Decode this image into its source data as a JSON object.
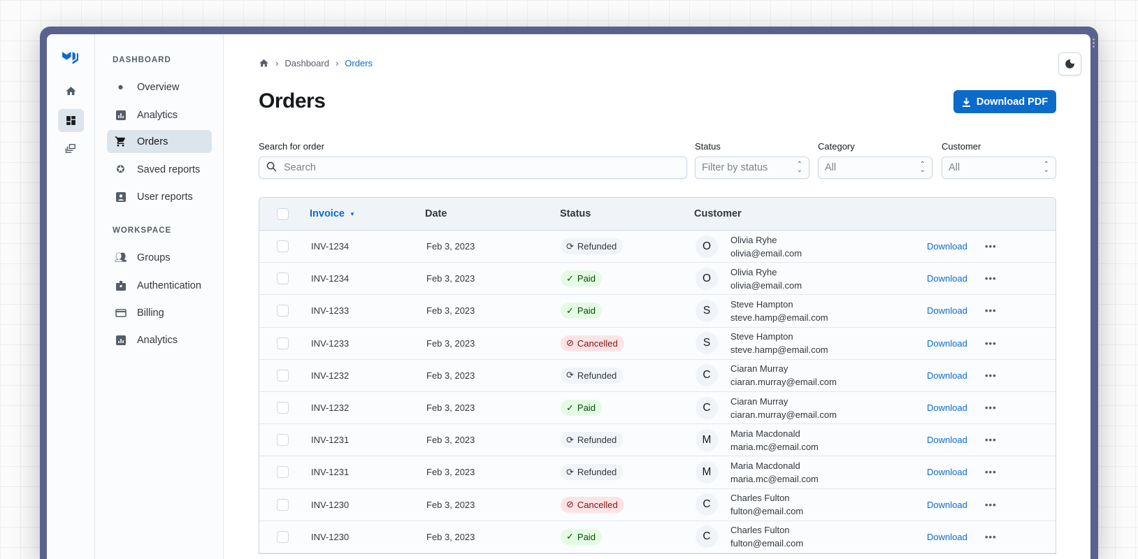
{
  "colors": {
    "accent": "#0b6bcb",
    "frame": "#59628f",
    "paid": "#e3fbe3",
    "cancelled": "#fce4e4",
    "refunded": "#f0f4f8"
  },
  "rail": {
    "logo": "MUI logo",
    "items": [
      {
        "icon": "home-icon"
      },
      {
        "icon": "dashboard-icon",
        "active": true
      },
      {
        "icon": "collections-icon"
      }
    ]
  },
  "nav": {
    "sections": [
      {
        "title": "DASHBOARD",
        "items": [
          {
            "label": "Overview",
            "icon": "bubble-chart-icon"
          },
          {
            "label": "Analytics",
            "icon": "bar-chart-icon"
          },
          {
            "label": "Orders",
            "icon": "cart-icon",
            "active": true
          },
          {
            "label": "Saved reports",
            "icon": "star-icon"
          },
          {
            "label": "User reports",
            "icon": "account-box-icon"
          }
        ]
      },
      {
        "title": "WORKSPACE",
        "items": [
          {
            "label": "Groups",
            "icon": "group-icon"
          },
          {
            "label": "Authentication",
            "icon": "badge-icon"
          },
          {
            "label": "Billing",
            "icon": "credit-card-icon"
          },
          {
            "label": "Analytics",
            "icon": "analytics-icon"
          }
        ]
      }
    ]
  },
  "breadcrumb": {
    "items": [
      "Dashboard",
      "Orders"
    ]
  },
  "header": {
    "title": "Orders",
    "download_pdf": "Download PDF"
  },
  "filters": {
    "search": {
      "label": "Search for order",
      "placeholder": "Search"
    },
    "status": {
      "label": "Status",
      "placeholder": "Filter by status"
    },
    "category": {
      "label": "Category",
      "value": "All"
    },
    "customer": {
      "label": "Customer",
      "value": "All"
    }
  },
  "table": {
    "columns": [
      "Invoice",
      "Date",
      "Status",
      "Customer"
    ],
    "sort": {
      "column": "Invoice",
      "direction": "desc"
    },
    "action_label": "Download",
    "rows": [
      {
        "invoice": "INV-1234",
        "date": "Feb 3, 2023",
        "status": "Refunded",
        "initial": "O",
        "name": "Olivia Ryhe",
        "email": "olivia@email.com"
      },
      {
        "invoice": "INV-1234",
        "date": "Feb 3, 2023",
        "status": "Paid",
        "initial": "O",
        "name": "Olivia Ryhe",
        "email": "olivia@email.com"
      },
      {
        "invoice": "INV-1233",
        "date": "Feb 3, 2023",
        "status": "Paid",
        "initial": "S",
        "name": "Steve Hampton",
        "email": "steve.hamp@email.com"
      },
      {
        "invoice": "INV-1233",
        "date": "Feb 3, 2023",
        "status": "Cancelled",
        "initial": "S",
        "name": "Steve Hampton",
        "email": "steve.hamp@email.com"
      },
      {
        "invoice": "INV-1232",
        "date": "Feb 3, 2023",
        "status": "Refunded",
        "initial": "C",
        "name": "Ciaran Murray",
        "email": "ciaran.murray@email.com"
      },
      {
        "invoice": "INV-1232",
        "date": "Feb 3, 2023",
        "status": "Paid",
        "initial": "C",
        "name": "Ciaran Murray",
        "email": "ciaran.murray@email.com"
      },
      {
        "invoice": "INV-1231",
        "date": "Feb 3, 2023",
        "status": "Refunded",
        "initial": "M",
        "name": "Maria Macdonald",
        "email": "maria.mc@email.com"
      },
      {
        "invoice": "INV-1231",
        "date": "Feb 3, 2023",
        "status": "Refunded",
        "initial": "M",
        "name": "Maria Macdonald",
        "email": "maria.mc@email.com"
      },
      {
        "invoice": "INV-1230",
        "date": "Feb 3, 2023",
        "status": "Cancelled",
        "initial": "C",
        "name": "Charles Fulton",
        "email": "fulton@email.com"
      },
      {
        "invoice": "INV-1230",
        "date": "Feb 3, 2023",
        "status": "Paid",
        "initial": "C",
        "name": "Charles Fulton",
        "email": "fulton@email.com"
      }
    ]
  }
}
